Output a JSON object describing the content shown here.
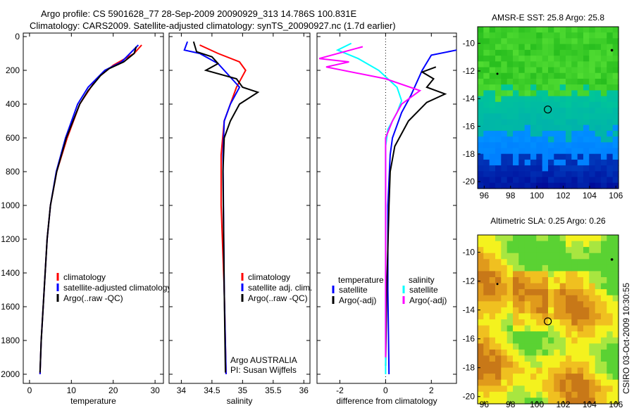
{
  "title": {
    "line1": "Argo profile: CS 5901628_77 28-Sep-2009 20090929_313 14.786S 100.831E",
    "line2": "Climatology: CARS2009. Satellite-adjusted climatology: synTS_20090927.nc (1.7d earlier)"
  },
  "footer_stamp": "CSIRO 03-Oct-2009 10:30:55",
  "colors": {
    "red": "#ff0000",
    "blue": "#0000ff",
    "black": "#000000",
    "cyan": "#00ffff",
    "magenta": "#ff00ff"
  },
  "chart_data": [
    {
      "type": "line",
      "xlabel": "temperature",
      "ylabel": "",
      "xlim": [
        -1.5,
        32
      ],
      "ylim": [
        2000,
        0
      ],
      "xticks": [
        "0",
        "10",
        "20",
        "30"
      ],
      "xtick_values": [
        0,
        10,
        20,
        30
      ],
      "yticks": [
        "0",
        "200",
        "400",
        "600",
        "800",
        "1000",
        "1200",
        "1400",
        "1600",
        "1800",
        "2000"
      ],
      "ytick_values": [
        0,
        200,
        400,
        600,
        800,
        1000,
        1200,
        1400,
        1600,
        1800,
        2000
      ],
      "legend": [
        "climatology",
        "satellite-adjusted climatology",
        "Argo(..raw -QC)"
      ],
      "series": [
        {
          "name": "climatology",
          "color": "#ff0000",
          "points": [
            [
              26.8,
              50
            ],
            [
              25,
              100
            ],
            [
              20,
              170
            ],
            [
              16,
              250
            ],
            [
              12,
              400
            ],
            [
              9,
              600
            ],
            [
              6.5,
              800
            ],
            [
              5,
              1000
            ],
            [
              4.2,
              1200
            ],
            [
              3.5,
              1500
            ],
            [
              2.8,
              1800
            ],
            [
              2.5,
              2000
            ]
          ]
        },
        {
          "name": "satellite-adjusted climatology",
          "color": "#0000ff",
          "points": [
            [
              26,
              50
            ],
            [
              24,
              100
            ],
            [
              22,
              150
            ],
            [
              18,
              200
            ],
            [
              14,
              300
            ],
            [
              11.5,
              400
            ],
            [
              8.6,
              600
            ],
            [
              6.4,
              800
            ],
            [
              5,
              1000
            ],
            [
              4.2,
              1200
            ],
            [
              3.5,
              1500
            ],
            [
              2.8,
              1800
            ],
            [
              2.5,
              2000
            ]
          ]
        },
        {
          "name": "Argo(..raw -QC)",
          "color": "#000000",
          "points": [
            [
              25.5,
              60
            ],
            [
              25,
              100
            ],
            [
              22.5,
              150
            ],
            [
              19,
              190
            ],
            [
              17,
              230
            ],
            [
              14,
              320
            ],
            [
              12,
              400
            ],
            [
              8.8,
              600
            ],
            [
              6.5,
              800
            ],
            [
              5,
              1000
            ],
            [
              4.2,
              1200
            ],
            [
              3.5,
              1500
            ],
            [
              2.8,
              1800
            ],
            [
              2.5,
              1990
            ]
          ]
        }
      ]
    },
    {
      "type": "line",
      "xlabel": "salinity",
      "xlim": [
        33.8,
        36.1
      ],
      "ylim": [
        2000,
        0
      ],
      "xticks": [
        "34",
        "34.5",
        "35",
        "35.5",
        "36"
      ],
      "xtick_values": [
        34,
        34.5,
        35,
        35.5,
        36
      ],
      "legend": [
        "climatology",
        "satellite adj. clim.",
        "Argo(..raw -QC)"
      ],
      "annotation": [
        "Argo AUSTRALIA",
        "PI: Susan Wijffels"
      ],
      "series": [
        {
          "name": "climatology",
          "color": "#ff0000",
          "points": [
            [
              34.3,
              50
            ],
            [
              34.6,
              100
            ],
            [
              34.95,
              150
            ],
            [
              35.05,
              200
            ],
            [
              34.9,
              300
            ],
            [
              34.8,
              400
            ],
            [
              34.7,
              500
            ],
            [
              34.65,
              700
            ],
            [
              34.65,
              1000
            ],
            [
              34.7,
              1500
            ],
            [
              34.73,
              2000
            ]
          ]
        },
        {
          "name": "satellite adj. clim.",
          "color": "#0000ff",
          "points": [
            [
              34.1,
              30
            ],
            [
              34.05,
              80
            ],
            [
              34.3,
              100
            ],
            [
              34.6,
              160
            ],
            [
              34.7,
              200
            ],
            [
              34.95,
              300
            ],
            [
              34.8,
              400
            ],
            [
              34.7,
              500
            ],
            [
              34.68,
              700
            ],
            [
              34.7,
              1500
            ],
            [
              34.73,
              2000
            ]
          ]
        },
        {
          "name": "Argo(..raw -QC)",
          "color": "#000000",
          "points": [
            [
              34.2,
              30
            ],
            [
              34.25,
              90
            ],
            [
              34.5,
              120
            ],
            [
              34.6,
              160
            ],
            [
              34.4,
              200
            ],
            [
              34.9,
              250
            ],
            [
              35.0,
              300
            ],
            [
              35.25,
              330
            ],
            [
              34.95,
              400
            ],
            [
              34.8,
              500
            ],
            [
              34.7,
              600
            ],
            [
              34.68,
              800
            ],
            [
              34.7,
              1500
            ],
            [
              34.72,
              1990
            ]
          ]
        }
      ]
    },
    {
      "type": "line",
      "xlabel": "difference from climatology",
      "xlim": [
        -3,
        3.1
      ],
      "ylim": [
        2000,
        0
      ],
      "xticks": [
        "-2",
        "0",
        "2"
      ],
      "xtick_values": [
        -2,
        0,
        2
      ],
      "legend_headers": [
        "temperature",
        "salinity"
      ],
      "legend": [
        "satellite",
        "Argo(-adj)",
        "satellite",
        "Argo(-adj)"
      ],
      "series": [
        {
          "name": "temperature satellite",
          "color": "#0000ff",
          "points": [
            [
              3.1,
              80
            ],
            [
              2,
              110
            ],
            [
              1.6,
              200
            ],
            [
              1.1,
              350
            ],
            [
              0.7,
              450
            ],
            [
              0.3,
              600
            ],
            [
              0.2,
              700
            ],
            [
              0.1,
              1000
            ],
            [
              0.1,
              1500
            ],
            [
              0.15,
              2000
            ]
          ]
        },
        {
          "name": "temperature Argo(-adj)",
          "color": "#000000",
          "points": [
            [
              2.2,
              180
            ],
            [
              1.6,
              210
            ],
            [
              2.1,
              250
            ],
            [
              1.8,
              300
            ],
            [
              2.6,
              340
            ],
            [
              1.8,
              390
            ],
            [
              1.0,
              500
            ],
            [
              0.4,
              650
            ],
            [
              0.2,
              800
            ],
            [
              0.15,
              1000
            ],
            [
              0.05,
              1500
            ],
            [
              0,
              1950
            ]
          ]
        },
        {
          "name": "salinity satellite",
          "color": "#00ffff",
          "points": [
            [
              -1.5,
              40
            ],
            [
              -2.1,
              80
            ],
            [
              -1.2,
              130
            ],
            [
              -0.3,
              200
            ],
            [
              0.5,
              300
            ],
            [
              0.7,
              380
            ],
            [
              0.5,
              450
            ],
            [
              0.1,
              550
            ],
            [
              0,
              650
            ],
            [
              0,
              1000
            ],
            [
              0,
              2000
            ]
          ]
        },
        {
          "name": "salinity Argo(-adj)",
          "color": "#ff00ff",
          "points": [
            [
              -1,
              60
            ],
            [
              -2.9,
              130
            ],
            [
              -1.6,
              150
            ],
            [
              -2.6,
              180
            ],
            [
              0,
              250
            ],
            [
              1.5,
              320
            ],
            [
              0.7,
              400
            ],
            [
              0.3,
              500
            ],
            [
              0,
              600
            ],
            [
              0,
              1000
            ],
            [
              0,
              1900
            ]
          ]
        }
      ]
    },
    {
      "type": "heatmap",
      "title": "AMSR-E SST: 25.8 Argo: 25.8",
      "xlim": [
        95.5,
        106.2
      ],
      "ylim": [
        -20.5,
        -8.8
      ],
      "xticks": [
        "96",
        "98",
        "100",
        "102",
        "104",
        "106"
      ],
      "xtick_values": [
        96,
        98,
        100,
        102,
        104,
        106
      ],
      "yticks": [
        "-10",
        "-12",
        "-14",
        "-16",
        "-18",
        "-20"
      ],
      "ytick_values": [
        -10,
        -12,
        -14,
        -16,
        -18,
        -20
      ],
      "profile_position": [
        100.831,
        -14.786
      ]
    },
    {
      "type": "heatmap",
      "title": "Altimetric SLA: 0.25 Argo: 0.26",
      "xlim": [
        95.5,
        106.2
      ],
      "ylim": [
        -20.5,
        -8.8
      ],
      "xticks": [
        "96",
        "98",
        "100",
        "102",
        "104",
        "106"
      ],
      "xtick_values": [
        96,
        98,
        100,
        102,
        104,
        106
      ],
      "yticks": [
        "-10",
        "-12",
        "-14",
        "-16",
        "-18",
        "-20"
      ],
      "ytick_values": [
        -10,
        -12,
        -14,
        -16,
        -18,
        -20
      ],
      "profile_position": [
        100.831,
        -14.786
      ]
    }
  ]
}
